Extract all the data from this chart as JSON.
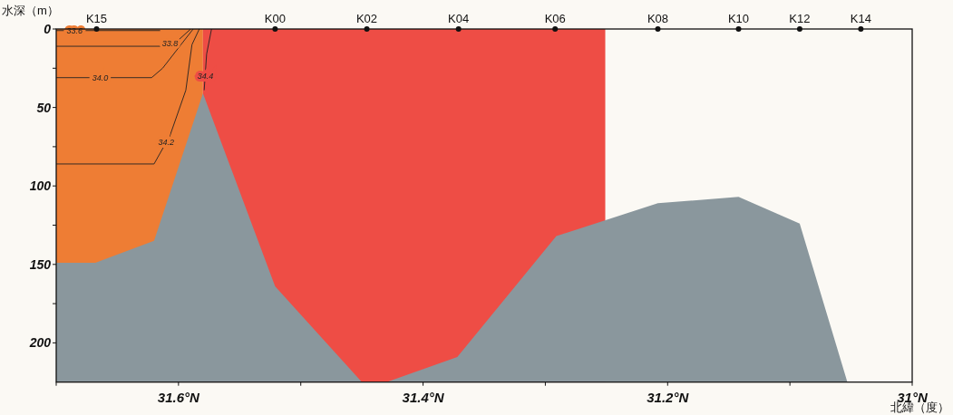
{
  "chart_data": {
    "type": "area",
    "xlabel": "北緯（度）",
    "ylabel": "水深（m）",
    "xlim": [
      31.7,
      31.0
    ],
    "ylim": [
      225,
      0
    ],
    "xticks": [
      {
        "value": 31.7,
        "label": null
      },
      {
        "value": 31.6,
        "label": "31.6°N"
      },
      {
        "value": 31.5,
        "label": null
      },
      {
        "value": 31.4,
        "label": "31.4°N"
      },
      {
        "value": 31.3,
        "label": null
      },
      {
        "value": 31.2,
        "label": "31.2°N"
      },
      {
        "value": 31.1,
        "label": null
      },
      {
        "value": 31.0,
        "label": "31°N"
      }
    ],
    "yticks": [
      0,
      {
        "value": 25,
        "label": null
      },
      50,
      {
        "value": 75,
        "label": null
      },
      100,
      {
        "value": 125,
        "label": null
      },
      150,
      {
        "value": 175,
        "label": null
      },
      200
    ],
    "bands": [
      {
        "axis": "x",
        "from": 31.7,
        "to": 31.58,
        "color": "#ee7d34"
      },
      {
        "axis": "x",
        "from": 31.58,
        "to": 31.251,
        "color": "#ee4d45"
      }
    ],
    "series": [
      {
        "type": "scatter",
        "color": "#111111",
        "x": [
          31.667,
          31.521,
          31.446,
          31.371,
          31.292,
          31.208,
          31.142,
          31.092,
          31.042
        ],
        "values": [
          0,
          0,
          0,
          0,
          0,
          0,
          0,
          0,
          0
        ],
        "value_labels": [
          "K15",
          "K00",
          "K02",
          "K04",
          "K06",
          "K08",
          "K10",
          "K12",
          "K14"
        ]
      },
      {
        "color": "#8a979d",
        "x": [
          31.7,
          31.7,
          31.668,
          31.62,
          31.58,
          31.521,
          31.45,
          31.43,
          31.372,
          31.291,
          31.208,
          31.142,
          31.092,
          31.053,
          31.0
        ],
        "values": [
          225,
          149,
          149,
          135,
          41,
          164,
          225,
          225,
          209,
          132,
          111,
          107,
          124,
          225,
          225
        ]
      },
      {
        "type": "line",
        "color": "#222222",
        "x": [
          31.7,
          31.615
        ],
        "values": [
          1,
          1
        ]
      },
      {
        "type": "line",
        "color": "#222222",
        "x": [
          31.7,
          31.615,
          31.6,
          31.59
        ],
        "values": [
          11,
          11,
          7,
          0
        ]
      },
      {
        "type": "line",
        "color": "#222222",
        "x": [
          31.7,
          31.622,
          31.613,
          31.598,
          31.588
        ],
        "values": [
          31,
          31,
          25,
          10,
          0
        ]
      },
      {
        "type": "line",
        "color": "#222222",
        "x": [
          31.7,
          31.62,
          31.607,
          31.594,
          31.589,
          31.583
        ],
        "values": [
          86,
          86,
          68,
          39,
          10,
          0
        ]
      },
      {
        "type": "line",
        "color": "#222222",
        "x": [
          31.579,
          31.577,
          31.573
        ],
        "values": [
          39,
          16,
          0
        ]
      }
    ],
    "annotations": [
      {
        "text": "33.6",
        "x": 31.685,
        "y": 1
      },
      {
        "text": "33.8",
        "x": 31.607,
        "y": 9
      },
      {
        "text": "34.0",
        "x": 31.664,
        "y": 31
      },
      {
        "text": "34.2",
        "x": 31.61,
        "y": 72
      },
      {
        "text": "34.4",
        "x": 31.578,
        "y": 30
      }
    ]
  }
}
